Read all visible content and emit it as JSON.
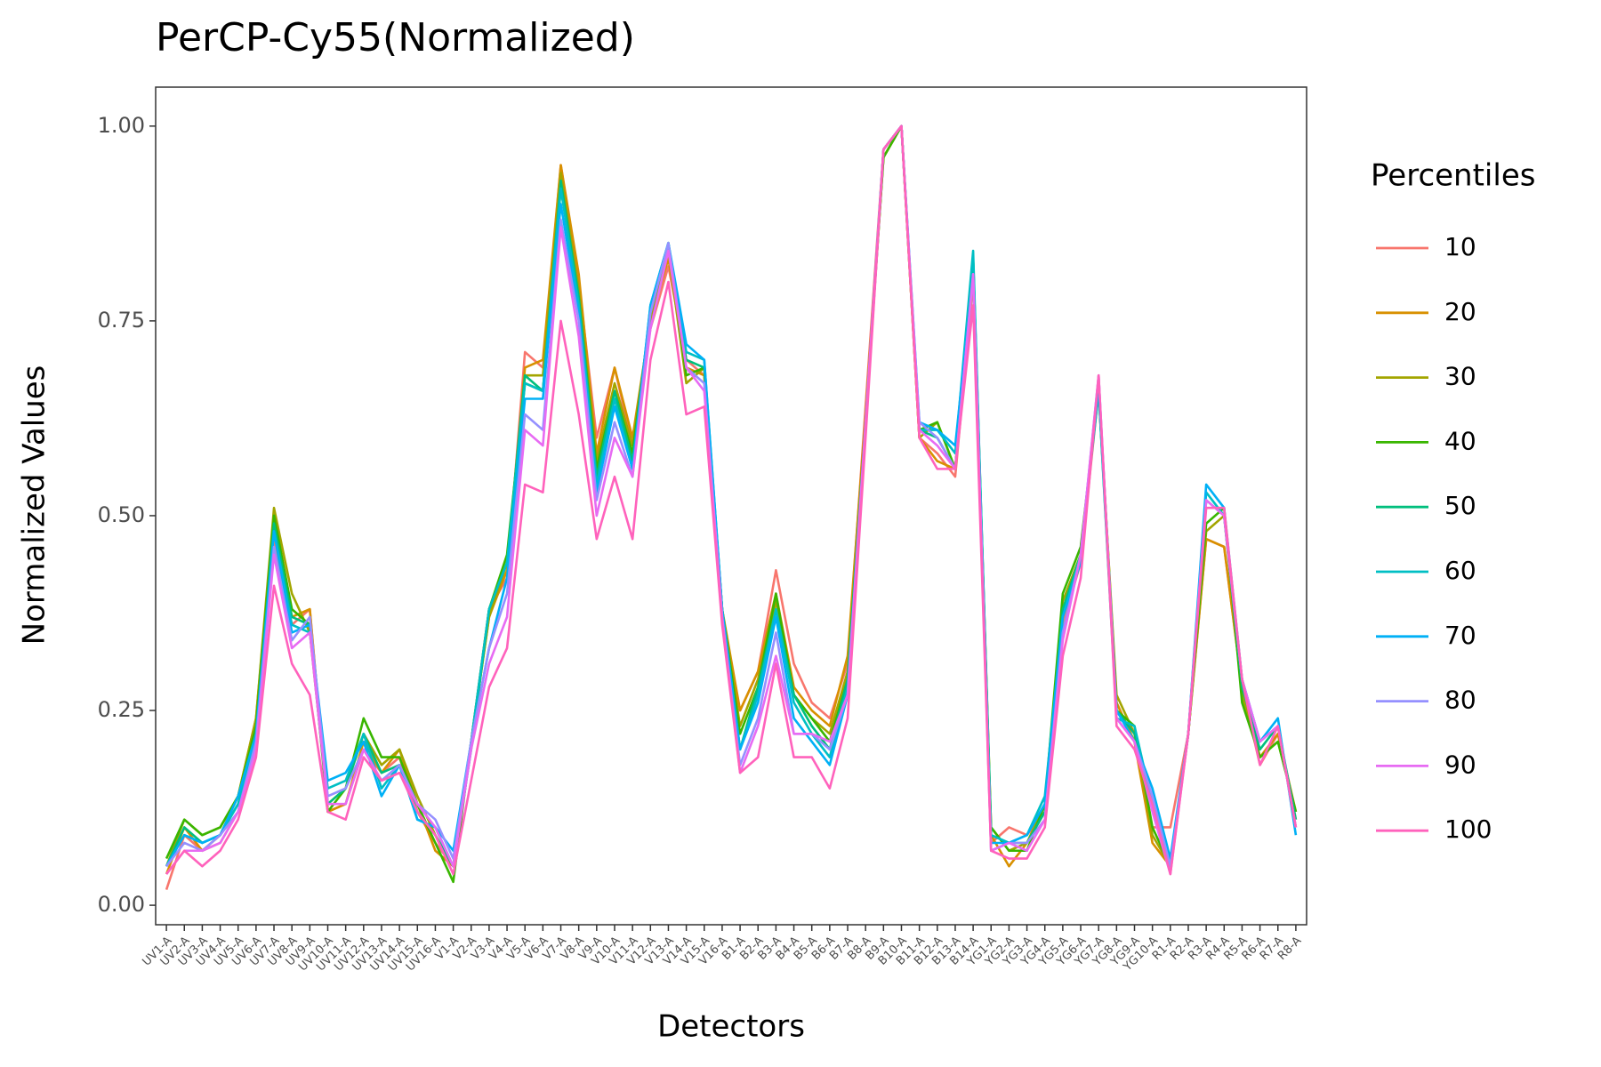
{
  "chart_data": {
    "type": "line",
    "title": "PerCP-Cy55(Normalized)",
    "x_label": "Detectors",
    "y_label": "Normalized Values",
    "legend_title": "Percentiles",
    "legend": "right",
    "grid": false,
    "categories": [
      "UV1-A",
      "UV2-A",
      "UV3-A",
      "UV4-A",
      "UV5-A",
      "UV6-A",
      "UV7-A",
      "UV8-A",
      "UV9-A",
      "UV10-A",
      "UV11-A",
      "UV12-A",
      "UV13-A",
      "UV14-A",
      "UV15-A",
      "UV16-A",
      "V1-A",
      "V2-A",
      "V3-A",
      "V4-A",
      "V5-A",
      "V6-A",
      "V7-A",
      "V8-A",
      "V9-A",
      "V10-A",
      "V11-A",
      "V12-A",
      "V13-A",
      "V14-A",
      "V15-A",
      "V16-A",
      "B1-A",
      "B2-A",
      "B3-A",
      "B4-A",
      "B5-A",
      "B6-A",
      "B7-A",
      "B8-A",
      "B9-A",
      "B10-A",
      "B11-A",
      "B12-A",
      "B13-A",
      "B14-A",
      "YG1-A",
      "YG2-A",
      "YG3-A",
      "YG4-A",
      "YG5-A",
      "YG6-A",
      "YG7-A",
      "YG8-A",
      "YG9-A",
      "YG10-A",
      "R1-A",
      "R2-A",
      "R3-A",
      "R4-A",
      "R5-A",
      "R6-A",
      "R7-A",
      "R8-A"
    ],
    "ylim": [
      -0.025,
      1.05
    ],
    "yticks": [
      {
        "value": 0,
        "label": "0.00"
      },
      {
        "value": 0.25,
        "label": "0.25"
      },
      {
        "value": 0.5,
        "label": "0.50"
      },
      {
        "value": 0.75,
        "label": "0.75"
      },
      {
        "value": 1,
        "label": "1.00"
      }
    ],
    "series": [
      {
        "name": "10",
        "color": "#F8766D",
        "values": [
          0.02,
          0.09,
          0.07,
          0.08,
          0.12,
          0.21,
          0.47,
          0.36,
          0.38,
          0.12,
          0.13,
          0.2,
          0.17,
          0.19,
          0.12,
          0.08,
          0.05,
          0.21,
          0.38,
          0.42,
          0.71,
          0.69,
          0.95,
          0.8,
          0.6,
          0.69,
          0.59,
          0.74,
          0.82,
          0.7,
          0.68,
          0.37,
          0.25,
          0.3,
          0.43,
          0.31,
          0.26,
          0.24,
          0.31,
          0.64,
          0.97,
          1.0,
          0.6,
          0.58,
          0.55,
          0.8,
          0.08,
          0.1,
          0.09,
          0.12,
          0.36,
          0.44,
          0.66,
          0.26,
          0.21,
          0.1,
          0.1,
          0.22,
          0.47,
          0.46,
          0.28,
          0.18,
          0.22,
          0.11
        ]
      },
      {
        "name": "20",
        "color": "#D89000",
        "values": [
          0.04,
          0.1,
          0.07,
          0.09,
          0.14,
          0.24,
          0.5,
          0.37,
          0.38,
          0.12,
          0.13,
          0.21,
          0.17,
          0.2,
          0.13,
          0.07,
          0.05,
          0.21,
          0.37,
          0.43,
          0.69,
          0.7,
          0.95,
          0.81,
          0.58,
          0.69,
          0.6,
          0.75,
          0.83,
          0.69,
          0.68,
          0.38,
          0.25,
          0.3,
          0.4,
          0.28,
          0.25,
          0.23,
          0.32,
          0.63,
          0.96,
          1.0,
          0.6,
          0.57,
          0.56,
          0.81,
          0.09,
          0.05,
          0.08,
          0.12,
          0.37,
          0.44,
          0.67,
          0.26,
          0.21,
          0.08,
          0.05,
          0.22,
          0.47,
          0.46,
          0.28,
          0.19,
          0.22,
          0.12
        ]
      },
      {
        "name": "30",
        "color": "#A3A500",
        "values": [
          0.05,
          0.11,
          0.09,
          0.1,
          0.14,
          0.24,
          0.51,
          0.4,
          0.35,
          0.13,
          0.15,
          0.22,
          0.18,
          0.2,
          0.14,
          0.09,
          0.05,
          0.21,
          0.37,
          0.44,
          0.68,
          0.68,
          0.94,
          0.79,
          0.57,
          0.67,
          0.59,
          0.75,
          0.84,
          0.67,
          0.69,
          0.38,
          0.23,
          0.29,
          0.39,
          0.27,
          0.24,
          0.22,
          0.3,
          0.62,
          0.96,
          1.0,
          0.6,
          0.62,
          0.56,
          0.82,
          0.1,
          0.07,
          0.08,
          0.13,
          0.39,
          0.45,
          0.66,
          0.27,
          0.22,
          0.09,
          0.05,
          0.22,
          0.48,
          0.5,
          0.27,
          0.19,
          0.21,
          0.12
        ]
      },
      {
        "name": "40",
        "color": "#39B600",
        "values": [
          0.06,
          0.11,
          0.09,
          0.1,
          0.14,
          0.23,
          0.5,
          0.38,
          0.36,
          0.12,
          0.15,
          0.24,
          0.19,
          0.19,
          0.13,
          0.08,
          0.03,
          0.21,
          0.38,
          0.45,
          0.67,
          0.66,
          0.92,
          0.78,
          0.56,
          0.66,
          0.58,
          0.76,
          0.85,
          0.68,
          0.69,
          0.38,
          0.22,
          0.28,
          0.4,
          0.27,
          0.24,
          0.21,
          0.29,
          0.62,
          0.96,
          1.0,
          0.61,
          0.62,
          0.56,
          0.83,
          0.1,
          0.07,
          0.07,
          0.13,
          0.4,
          0.46,
          0.66,
          0.25,
          0.23,
          0.1,
          0.05,
          0.22,
          0.49,
          0.51,
          0.26,
          0.19,
          0.21,
          0.12
        ]
      },
      {
        "name": "50",
        "color": "#00BF7D",
        "values": [
          0.05,
          0.1,
          0.08,
          0.09,
          0.13,
          0.22,
          0.49,
          0.37,
          0.36,
          0.13,
          0.15,
          0.22,
          0.17,
          0.18,
          0.12,
          0.09,
          0.05,
          0.2,
          0.38,
          0.44,
          0.68,
          0.66,
          0.93,
          0.78,
          0.55,
          0.66,
          0.57,
          0.76,
          0.85,
          0.7,
          0.69,
          0.38,
          0.2,
          0.28,
          0.38,
          0.27,
          0.23,
          0.2,
          0.29,
          0.62,
          0.97,
          1.0,
          0.61,
          0.6,
          0.56,
          0.83,
          0.09,
          0.08,
          0.08,
          0.12,
          0.38,
          0.45,
          0.67,
          0.25,
          0.22,
          0.13,
          0.05,
          0.22,
          0.52,
          0.5,
          0.28,
          0.2,
          0.23,
          0.11
        ]
      },
      {
        "name": "60",
        "color": "#00BFC4",
        "values": [
          0.05,
          0.09,
          0.08,
          0.09,
          0.13,
          0.21,
          0.48,
          0.36,
          0.35,
          0.15,
          0.16,
          0.22,
          0.15,
          0.18,
          0.11,
          0.1,
          0.05,
          0.21,
          0.38,
          0.44,
          0.67,
          0.66,
          0.92,
          0.77,
          0.54,
          0.65,
          0.56,
          0.77,
          0.85,
          0.71,
          0.7,
          0.38,
          0.2,
          0.27,
          0.38,
          0.26,
          0.22,
          0.19,
          0.28,
          0.61,
          0.97,
          1.0,
          0.61,
          0.61,
          0.58,
          0.84,
          0.09,
          0.08,
          0.09,
          0.14,
          0.37,
          0.45,
          0.66,
          0.24,
          0.23,
          0.13,
          0.05,
          0.22,
          0.53,
          0.5,
          0.29,
          0.21,
          0.23,
          0.1
        ]
      },
      {
        "name": "70",
        "color": "#00B0F6",
        "values": [
          0.05,
          0.09,
          0.08,
          0.09,
          0.14,
          0.22,
          0.48,
          0.35,
          0.36,
          0.16,
          0.17,
          0.21,
          0.14,
          0.18,
          0.11,
          0.1,
          0.07,
          0.21,
          0.33,
          0.42,
          0.65,
          0.65,
          0.9,
          0.76,
          0.53,
          0.64,
          0.56,
          0.77,
          0.85,
          0.72,
          0.7,
          0.38,
          0.2,
          0.26,
          0.37,
          0.24,
          0.21,
          0.18,
          0.27,
          0.61,
          0.97,
          1.0,
          0.62,
          0.61,
          0.59,
          0.81,
          0.08,
          0.08,
          0.09,
          0.13,
          0.37,
          0.44,
          0.67,
          0.25,
          0.21,
          0.15,
          0.06,
          0.22,
          0.54,
          0.51,
          0.29,
          0.21,
          0.24,
          0.09
        ]
      },
      {
        "name": "80",
        "color": "#9590FF",
        "values": [
          0.05,
          0.08,
          0.07,
          0.09,
          0.12,
          0.21,
          0.46,
          0.34,
          0.37,
          0.14,
          0.15,
          0.2,
          0.16,
          0.18,
          0.13,
          0.11,
          0.06,
          0.21,
          0.33,
          0.4,
          0.63,
          0.61,
          0.88,
          0.75,
          0.52,
          0.62,
          0.55,
          0.76,
          0.85,
          0.69,
          0.67,
          0.37,
          0.18,
          0.24,
          0.35,
          0.22,
          0.22,
          0.2,
          0.27,
          0.61,
          0.97,
          1.0,
          0.62,
          0.6,
          0.56,
          0.81,
          0.07,
          0.08,
          0.08,
          0.11,
          0.35,
          0.45,
          0.68,
          0.24,
          0.21,
          0.14,
          0.05,
          0.22,
          0.52,
          0.5,
          0.29,
          0.21,
          0.23,
          0.1
        ]
      },
      {
        "name": "90",
        "color": "#E76BF3",
        "values": [
          0.04,
          0.07,
          0.07,
          0.08,
          0.12,
          0.2,
          0.45,
          0.33,
          0.35,
          0.13,
          0.13,
          0.2,
          0.16,
          0.17,
          0.13,
          0.1,
          0.05,
          0.2,
          0.31,
          0.37,
          0.61,
          0.59,
          0.87,
          0.73,
          0.5,
          0.6,
          0.55,
          0.74,
          0.84,
          0.69,
          0.66,
          0.37,
          0.17,
          0.23,
          0.32,
          0.22,
          0.22,
          0.21,
          0.27,
          0.62,
          0.97,
          1.0,
          0.61,
          0.59,
          0.56,
          0.81,
          0.07,
          0.08,
          0.07,
          0.11,
          0.34,
          0.45,
          0.68,
          0.24,
          0.21,
          0.12,
          0.04,
          0.22,
          0.52,
          0.5,
          0.29,
          0.21,
          0.23,
          0.1
        ]
      },
      {
        "name": "100",
        "color": "#FF62BC",
        "values": [
          0.04,
          0.07,
          0.05,
          0.07,
          0.11,
          0.19,
          0.41,
          0.31,
          0.27,
          0.12,
          0.11,
          0.19,
          0.16,
          0.17,
          0.12,
          0.09,
          0.04,
          0.16,
          0.28,
          0.33,
          0.54,
          0.53,
          0.75,
          0.63,
          0.47,
          0.55,
          0.47,
          0.7,
          0.8,
          0.63,
          0.64,
          0.36,
          0.17,
          0.19,
          0.31,
          0.19,
          0.19,
          0.15,
          0.24,
          0.6,
          0.97,
          1.0,
          0.6,
          0.56,
          0.56,
          0.77,
          0.07,
          0.06,
          0.06,
          0.1,
          0.32,
          0.42,
          0.68,
          0.23,
          0.2,
          0.13,
          0.04,
          0.22,
          0.51,
          0.51,
          0.29,
          0.18,
          0.23,
          0.1
        ]
      }
    ]
  }
}
